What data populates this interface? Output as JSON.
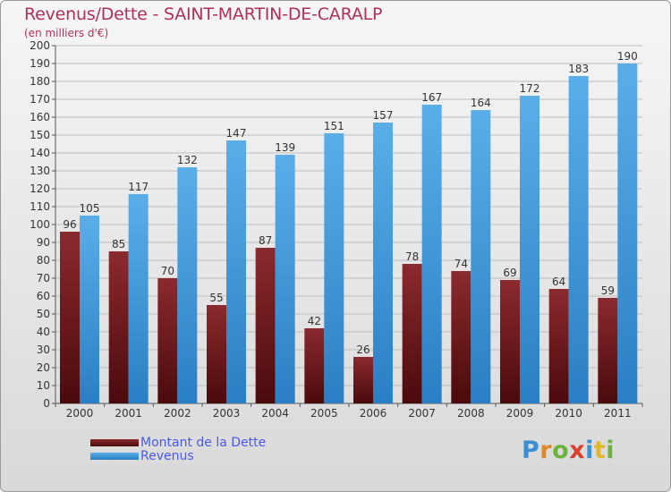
{
  "title": "Revenus/Dette - SAINT-MARTIN-DE-CARALP",
  "subtitle": "(en milliers d'€)",
  "logo": {
    "letters": [
      {
        "ch": "P",
        "color": "#3b8fd1"
      },
      {
        "ch": "r",
        "color": "#e0892b"
      },
      {
        "ch": "o",
        "color": "#6bb33a"
      },
      {
        "ch": "x",
        "color": "#d6402f"
      },
      {
        "ch": "i",
        "color": "#3b8fd1"
      },
      {
        "ch": "t",
        "color": "#e0b72b"
      },
      {
        "ch": "i",
        "color": "#6bb33a"
      }
    ]
  },
  "colors": {
    "dette_top": "#8b2a2e",
    "dette_bottom": "#4a0a0c",
    "revenus_top": "#5aaee8",
    "revenus_bottom": "#2a7fc4",
    "title": "#b0305a",
    "legend_text": "#4a5ae8"
  },
  "chart_data": {
    "type": "bar",
    "title": "Revenus/Dette - SAINT-MARTIN-DE-CARALP",
    "subtitle": "(en milliers d'€)",
    "categories": [
      "2000",
      "2001",
      "2002",
      "2003",
      "2004",
      "2005",
      "2006",
      "2007",
      "2008",
      "2009",
      "2010",
      "2011"
    ],
    "series": [
      {
        "name": "Montant de la Dette",
        "values": [
          96,
          85,
          70,
          55,
          87,
          42,
          26,
          78,
          74,
          69,
          64,
          59
        ]
      },
      {
        "name": "Revenus",
        "values": [
          105,
          117,
          132,
          147,
          139,
          151,
          157,
          167,
          164,
          172,
          183,
          190
        ]
      }
    ],
    "ylim": [
      0,
      200
    ],
    "ytick_step": 10,
    "grid": true,
    "legend_position": "bottom-left"
  }
}
